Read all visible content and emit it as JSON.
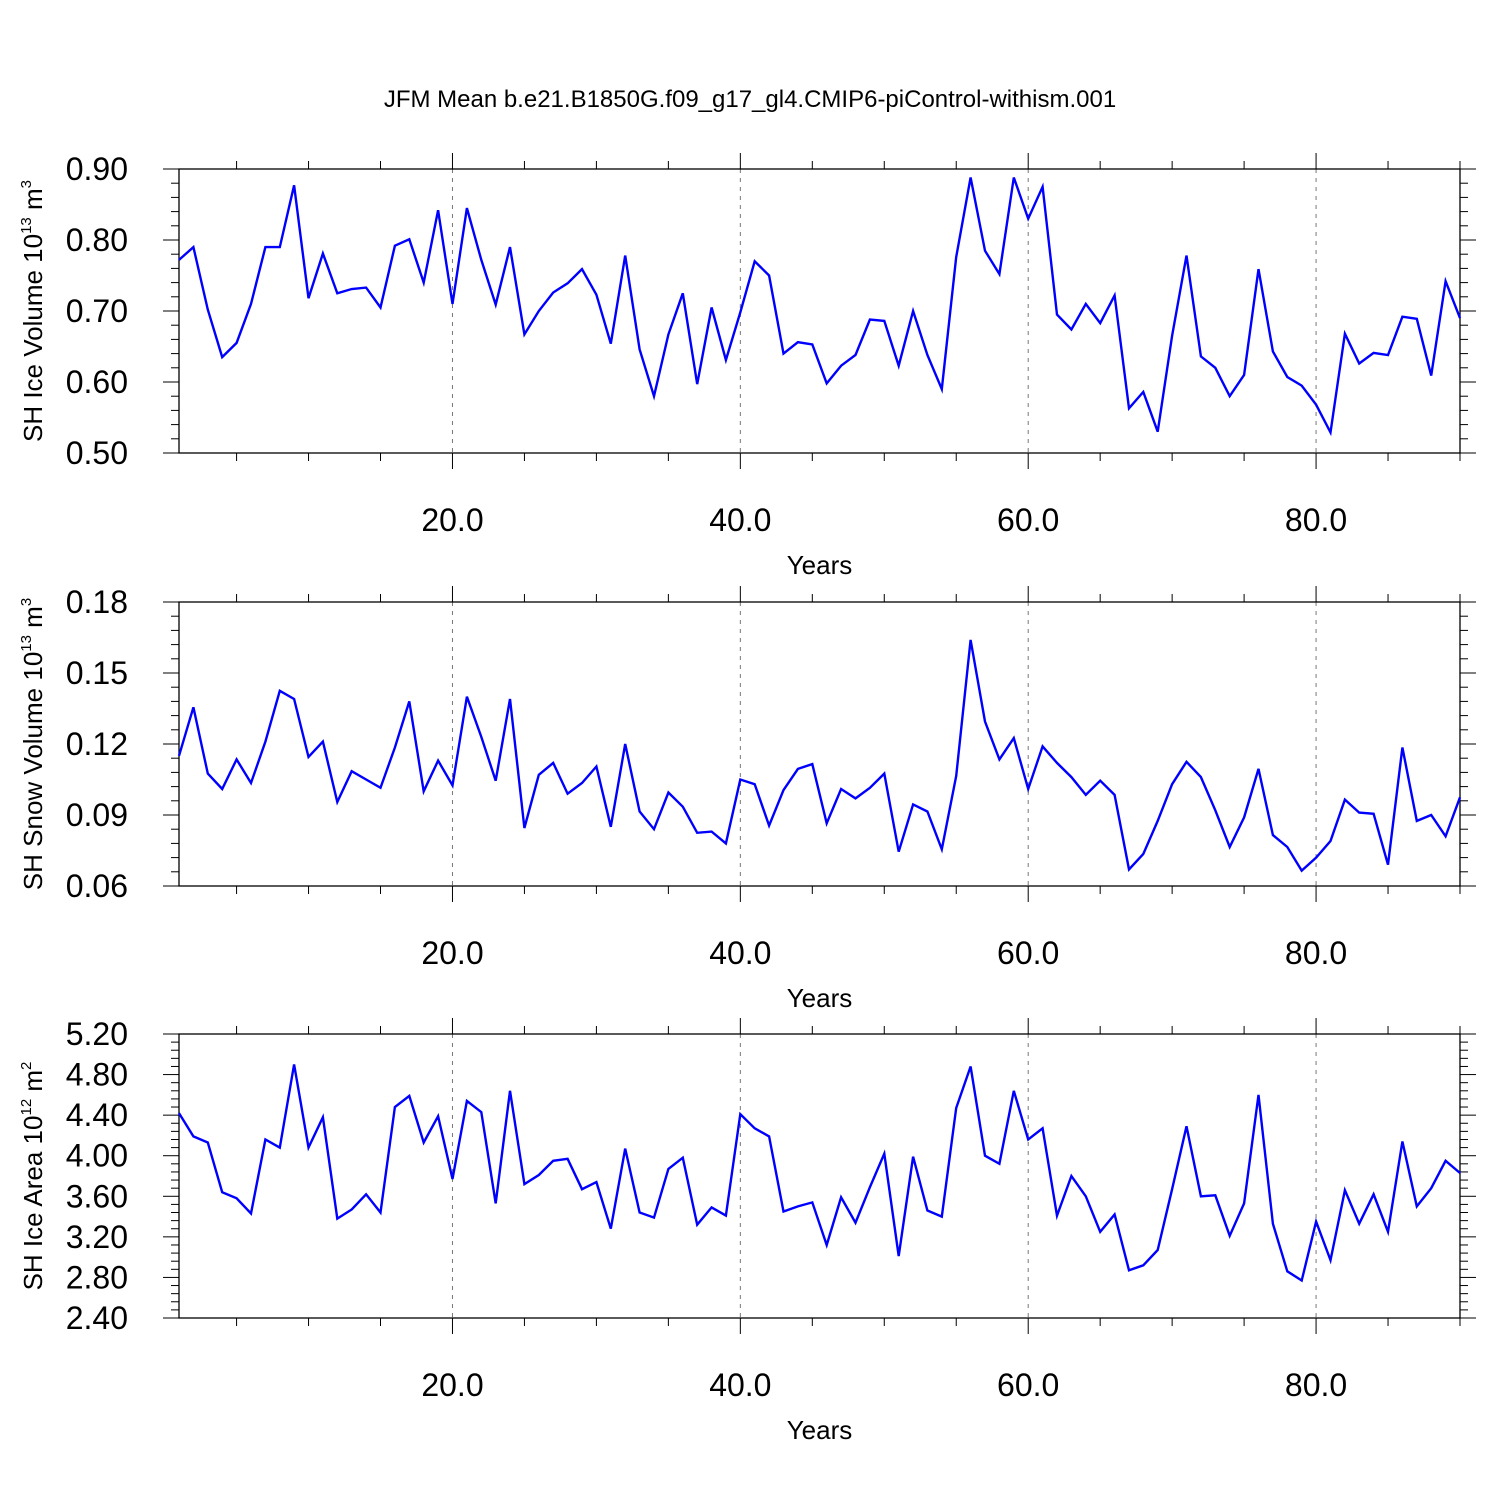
{
  "title": "JFM Mean b.e21.B1850G.f09_g17_gl4.CMIP6-piControl-withism.001",
  "line_color": "#0000ff",
  "chart_data": [
    {
      "type": "line",
      "xlabel": "Years",
      "ylabel": "SH Ice Volume 10",
      "ylabel_sup": "13",
      "ylabel_unit": "m",
      "ylabel_unit_sup": "3",
      "xlim": [
        1,
        90
      ],
      "ylim": [
        0.5,
        0.9
      ],
      "x_ticks": [
        20,
        40,
        60,
        80
      ],
      "x_tick_labels": [
        "20.0",
        "40.0",
        "60.0",
        "80.0"
      ],
      "y_ticks": [
        0.5,
        0.6,
        0.7,
        0.8,
        0.9
      ],
      "y_tick_labels": [
        "0.50",
        "0.60",
        "0.70",
        "0.80",
        "0.90"
      ],
      "x": [
        1,
        2,
        3,
        4,
        5,
        6,
        7,
        8,
        9,
        10,
        11,
        12,
        13,
        14,
        15,
        16,
        17,
        18,
        19,
        20,
        21,
        22,
        23,
        24,
        25,
        26,
        27,
        28,
        29,
        30,
        31,
        32,
        33,
        34,
        35,
        36,
        37,
        38,
        39,
        40,
        41,
        42,
        43,
        44,
        45,
        46,
        47,
        48,
        49,
        50,
        51,
        52,
        53,
        54,
        55,
        56,
        57,
        58,
        59,
        60,
        61,
        62,
        63,
        64,
        65,
        66,
        67,
        68,
        69,
        70,
        71,
        72,
        73,
        74,
        75,
        76,
        77,
        78,
        79,
        80,
        81,
        82,
        83,
        84,
        85,
        86,
        87,
        88,
        89,
        90
      ],
      "series": [
        {
          "values": [
            0.772,
            0.79,
            0.702,
            0.635,
            0.655,
            0.71,
            0.79,
            0.79,
            0.877,
            0.718,
            0.781,
            0.725,
            0.731,
            0.733,
            0.705,
            0.792,
            0.801,
            0.74,
            0.842,
            0.71,
            0.845,
            0.772,
            0.709,
            0.79,
            0.667,
            0.7,
            0.726,
            0.739,
            0.759,
            0.723,
            0.654,
            0.778,
            0.646,
            0.58,
            0.667,
            0.725,
            0.597,
            0.705,
            0.631,
            0.698,
            0.77,
            0.75,
            0.64,
            0.656,
            0.653,
            0.598,
            0.623,
            0.638,
            0.688,
            0.686,
            0.623,
            0.7,
            0.638,
            0.59,
            0.776,
            0.888,
            0.785,
            0.752,
            0.888,
            0.83,
            0.875,
            0.695,
            0.674,
            0.71,
            0.683,
            0.722,
            0.563,
            0.586,
            0.53,
            0.665,
            0.778,
            0.636,
            0.62,
            0.58,
            0.61,
            0.759,
            0.643,
            0.607,
            0.595,
            0.568,
            0.529,
            0.668,
            0.626,
            0.641,
            0.638,
            0.692,
            0.689,
            0.609,
            0.742,
            0.69
          ]
        }
      ]
    },
    {
      "type": "line",
      "xlabel": "Years",
      "ylabel": "SH Snow Volume 10",
      "ylabel_sup": "13",
      "ylabel_unit": "m",
      "ylabel_unit_sup": "3",
      "xlim": [
        1,
        90
      ],
      "ylim": [
        0.06,
        0.18
      ],
      "x_ticks": [
        20,
        40,
        60,
        80
      ],
      "x_tick_labels": [
        "20.0",
        "40.0",
        "60.0",
        "80.0"
      ],
      "y_ticks": [
        0.06,
        0.09,
        0.12,
        0.15,
        0.18
      ],
      "y_tick_labels": [
        "0.06",
        "0.09",
        "0.12",
        "0.15",
        "0.18"
      ],
      "x": [
        1,
        2,
        3,
        4,
        5,
        6,
        7,
        8,
        9,
        10,
        11,
        12,
        13,
        14,
        15,
        16,
        17,
        18,
        19,
        20,
        21,
        22,
        23,
        24,
        25,
        26,
        27,
        28,
        29,
        30,
        31,
        32,
        33,
        34,
        35,
        36,
        37,
        38,
        39,
        40,
        41,
        42,
        43,
        44,
        45,
        46,
        47,
        48,
        49,
        50,
        51,
        52,
        53,
        54,
        55,
        56,
        57,
        58,
        59,
        60,
        61,
        62,
        63,
        64,
        65,
        66,
        67,
        68,
        69,
        70,
        71,
        72,
        73,
        74,
        75,
        76,
        77,
        78,
        79,
        80,
        81,
        82,
        83,
        84,
        85,
        86,
        87,
        88,
        89,
        90
      ],
      "series": [
        {
          "values": [
            0.115,
            0.1355,
            0.1075,
            0.101,
            0.1135,
            0.1035,
            0.121,
            0.1425,
            0.139,
            0.1145,
            0.121,
            0.0955,
            0.1085,
            0.105,
            0.1015,
            0.1185,
            0.138,
            0.1,
            0.113,
            0.1025,
            0.14,
            0.123,
            0.1045,
            0.139,
            0.0845,
            0.107,
            0.112,
            0.099,
            0.1035,
            0.1105,
            0.085,
            0.12,
            0.0915,
            0.084,
            0.0995,
            0.0935,
            0.0825,
            0.083,
            0.078,
            0.105,
            0.103,
            0.0855,
            0.1005,
            0.1095,
            0.1115,
            0.0865,
            0.101,
            0.097,
            0.1015,
            0.1075,
            0.0745,
            0.0945,
            0.0915,
            0.0755,
            0.1065,
            0.164,
            0.1295,
            0.1135,
            0.1225,
            0.101,
            0.119,
            0.112,
            0.106,
            0.0985,
            0.1045,
            0.0985,
            0.067,
            0.0735,
            0.0875,
            0.103,
            0.1125,
            0.106,
            0.092,
            0.0765,
            0.089,
            0.1095,
            0.0815,
            0.0765,
            0.0665,
            0.072,
            0.079,
            0.0965,
            0.091,
            0.0905,
            0.069,
            0.1185,
            0.0875,
            0.09,
            0.081,
            0.0975
          ]
        }
      ]
    },
    {
      "type": "line",
      "xlabel": "Years",
      "ylabel": "SH Ice Area 10",
      "ylabel_sup": "12",
      "ylabel_unit": "m",
      "ylabel_unit_sup": "2",
      "xlim": [
        1,
        90
      ],
      "ylim": [
        2.4,
        5.2
      ],
      "x_ticks": [
        20,
        40,
        60,
        80
      ],
      "x_tick_labels": [
        "20.0",
        "40.0",
        "60.0",
        "80.0"
      ],
      "y_ticks": [
        2.4,
        2.8,
        3.2,
        3.6,
        4.0,
        4.4,
        4.8,
        5.2
      ],
      "y_tick_labels": [
        "2.40",
        "2.80",
        "3.20",
        "3.60",
        "4.00",
        "4.40",
        "4.80",
        "5.20"
      ],
      "x": [
        1,
        2,
        3,
        4,
        5,
        6,
        7,
        8,
        9,
        10,
        11,
        12,
        13,
        14,
        15,
        16,
        17,
        18,
        19,
        20,
        21,
        22,
        23,
        24,
        25,
        26,
        27,
        28,
        29,
        30,
        31,
        32,
        33,
        34,
        35,
        36,
        37,
        38,
        39,
        40,
        41,
        42,
        43,
        44,
        45,
        46,
        47,
        48,
        49,
        50,
        51,
        52,
        53,
        54,
        55,
        56,
        57,
        58,
        59,
        60,
        61,
        62,
        63,
        64,
        65,
        66,
        67,
        68,
        69,
        70,
        71,
        72,
        73,
        74,
        75,
        76,
        77,
        78,
        79,
        80,
        81,
        82,
        83,
        84,
        85,
        86,
        87,
        88,
        89,
        90
      ],
      "series": [
        {
          "values": [
            4.42,
            4.19,
            4.13,
            3.64,
            3.58,
            3.43,
            4.16,
            4.08,
            4.9,
            4.08,
            4.38,
            3.38,
            3.47,
            3.62,
            3.44,
            4.48,
            4.59,
            4.13,
            4.39,
            3.77,
            4.54,
            4.43,
            3.53,
            4.64,
            3.72,
            3.81,
            3.95,
            3.97,
            3.67,
            3.74,
            3.28,
            4.07,
            3.44,
            3.39,
            3.87,
            3.98,
            3.32,
            3.49,
            3.41,
            4.41,
            4.27,
            4.19,
            3.45,
            3.5,
            3.54,
            3.12,
            3.59,
            3.34,
            3.69,
            4.02,
            3.01,
            3.99,
            3.46,
            3.4,
            4.47,
            4.88,
            4.0,
            3.92,
            4.64,
            4.16,
            4.27,
            3.41,
            3.8,
            3.6,
            3.25,
            3.42,
            2.87,
            2.92,
            3.07,
            3.67,
            4.29,
            3.6,
            3.61,
            3.21,
            3.53,
            4.6,
            3.33,
            2.86,
            2.77,
            3.35,
            2.97,
            3.66,
            3.33,
            3.62,
            3.25,
            4.14,
            3.5,
            3.68,
            3.95,
            3.83
          ]
        }
      ]
    }
  ]
}
